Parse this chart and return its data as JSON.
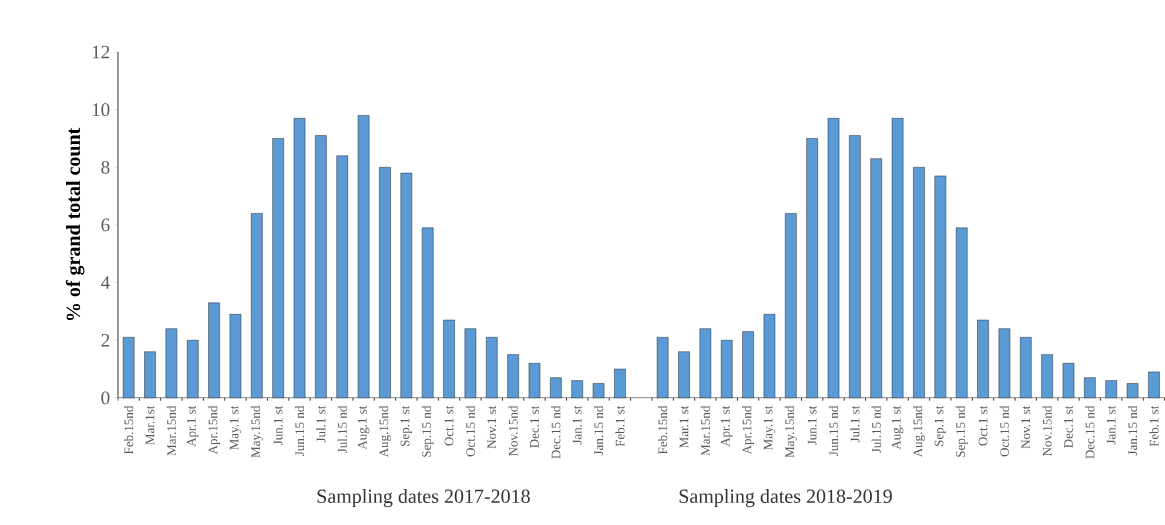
{
  "chart_data": {
    "type": "bar",
    "ylabel": "% of grand total count",
    "annotations": [
      "Sampling dates 2017-2018",
      "Sampling dates 2018-2019"
    ],
    "categories": [
      "Feb.15nd",
      "Mar.1st",
      "Mar.15nd",
      "Apr.1 st",
      "Apr.15nd",
      "May.1 st",
      "May.15nd",
      "Jun.1 st",
      "Jun.15 nd",
      "Jul.1 st",
      "Jul.15 nd",
      "Aug.1 st",
      "Aug.15nd",
      "Sep.1 st",
      "Sep.15 nd",
      "Oct.1 st",
      "Oct.15 nd",
      "Nov.1 st",
      "Nov.15nd",
      "Dec.1 st",
      "Dec.15 nd",
      "Jan.1 st",
      "Jan.15 nd",
      "Feb.1 st",
      null,
      "Feb.15nd",
      "Mar.1 st",
      "Mar.15nd",
      "Apr.1 st",
      "Apr.15nd",
      "May.1 st",
      "May.15nd",
      "Jun.1 st",
      "Jun.15 nd",
      "Jul.1 st",
      "Jul.15 nd",
      "Aug.1 st",
      "Aug.15nd",
      "Sep.1 st",
      "Sep.15 nd",
      "Oct.1 st",
      "Oct.15 nd",
      "Nov.1 st",
      "Nov.15nd",
      "Dec.1 st",
      "Dec.15 nd",
      "Jan.1 st",
      "Jan.15 nd",
      "Feb.1 st"
    ],
    "values": [
      2.1,
      1.6,
      2.4,
      2.0,
      3.3,
      2.9,
      6.4,
      9.0,
      9.7,
      9.1,
      8.4,
      9.8,
      8.0,
      7.8,
      5.9,
      2.7,
      2.4,
      2.1,
      1.5,
      1.2,
      0.7,
      0.6,
      0.5,
      1.0,
      null,
      2.1,
      1.6,
      2.4,
      2.0,
      2.3,
      2.9,
      6.4,
      9.0,
      9.7,
      9.1,
      8.3,
      9.7,
      8.0,
      7.7,
      5.9,
      2.7,
      2.4,
      2.1,
      1.5,
      1.2,
      0.7,
      0.6,
      0.5,
      0.9
    ],
    "color": "#5b9bd5",
    "ylim": [
      0,
      12
    ],
    "yticks": [
      0,
      2,
      4,
      6,
      8,
      10,
      12
    ]
  }
}
